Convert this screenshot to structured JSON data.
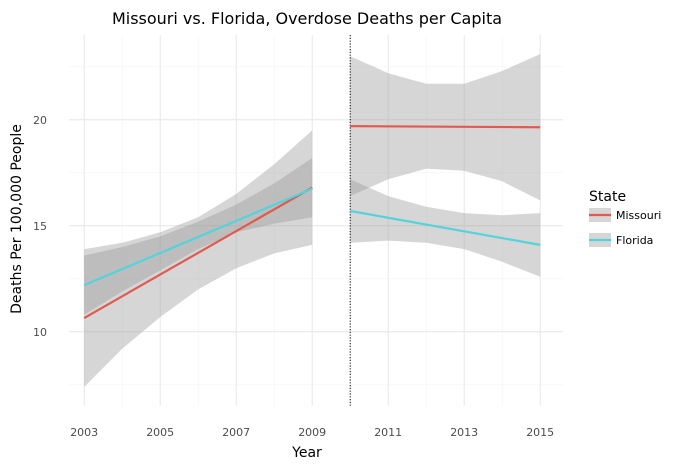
{
  "chart_data": {
    "type": "line",
    "title": "Missouri vs. Florida, Overdose Deaths per Capita",
    "xlabel": "Year",
    "ylabel": "Deaths Per 100,000 People",
    "xlim": [
      2002.6,
      2015.6
    ],
    "ylim": [
      6.5,
      24
    ],
    "x_ticks": [
      2003,
      2005,
      2007,
      2009,
      2011,
      2013,
      2015
    ],
    "y_ticks": [
      10,
      15,
      20
    ],
    "grid": true,
    "legend": {
      "title": "State",
      "placement": "right"
    },
    "reference_line": {
      "x": 2010,
      "style": "dotted"
    },
    "series": [
      {
        "name": "Missouri",
        "color": "#e15a50",
        "segments": [
          {
            "x": [
              2003,
              2009
            ],
            "y": [
              10.65,
              16.8
            ],
            "band_x": [
              2003,
              2004,
              2005,
              2006,
              2007,
              2008,
              2009
            ],
            "band_lower": [
              7.4,
              9.2,
              10.7,
              12.0,
              13.0,
              13.7,
              14.1
            ],
            "band_upper": [
              13.9,
              14.2,
              14.7,
              15.4,
              16.5,
              17.9,
              19.5
            ]
          },
          {
            "x": [
              2010,
              2015
            ],
            "y": [
              19.7,
              19.65
            ],
            "band_x": [
              2010,
              2011,
              2012,
              2013,
              2014,
              2015
            ],
            "band_lower": [
              16.4,
              17.2,
              17.7,
              17.6,
              17.1,
              16.2
            ],
            "band_upper": [
              23.0,
              22.2,
              21.7,
              21.7,
              22.3,
              23.1
            ]
          }
        ]
      },
      {
        "name": "Florida",
        "color": "#53d3da",
        "segments": [
          {
            "x": [
              2003,
              2009
            ],
            "y": [
              12.2,
              16.75
            ],
            "band_x": [
              2003,
              2004,
              2005,
              2006,
              2007,
              2008,
              2009
            ],
            "band_lower": [
              10.8,
              11.9,
              12.9,
              13.9,
              14.7,
              15.1,
              15.4
            ],
            "band_upper": [
              13.6,
              14.0,
              14.5,
              15.2,
              16.0,
              17.0,
              18.2
            ]
          },
          {
            "x": [
              2010,
              2015
            ],
            "y": [
              15.7,
              14.1
            ],
            "band_x": [
              2010,
              2011,
              2012,
              2013,
              2014,
              2015
            ],
            "band_lower": [
              14.2,
              14.3,
              14.2,
              13.9,
              13.3,
              12.6
            ],
            "band_upper": [
              17.2,
              16.4,
              15.9,
              15.6,
              15.5,
              15.6
            ]
          }
        ]
      }
    ]
  }
}
